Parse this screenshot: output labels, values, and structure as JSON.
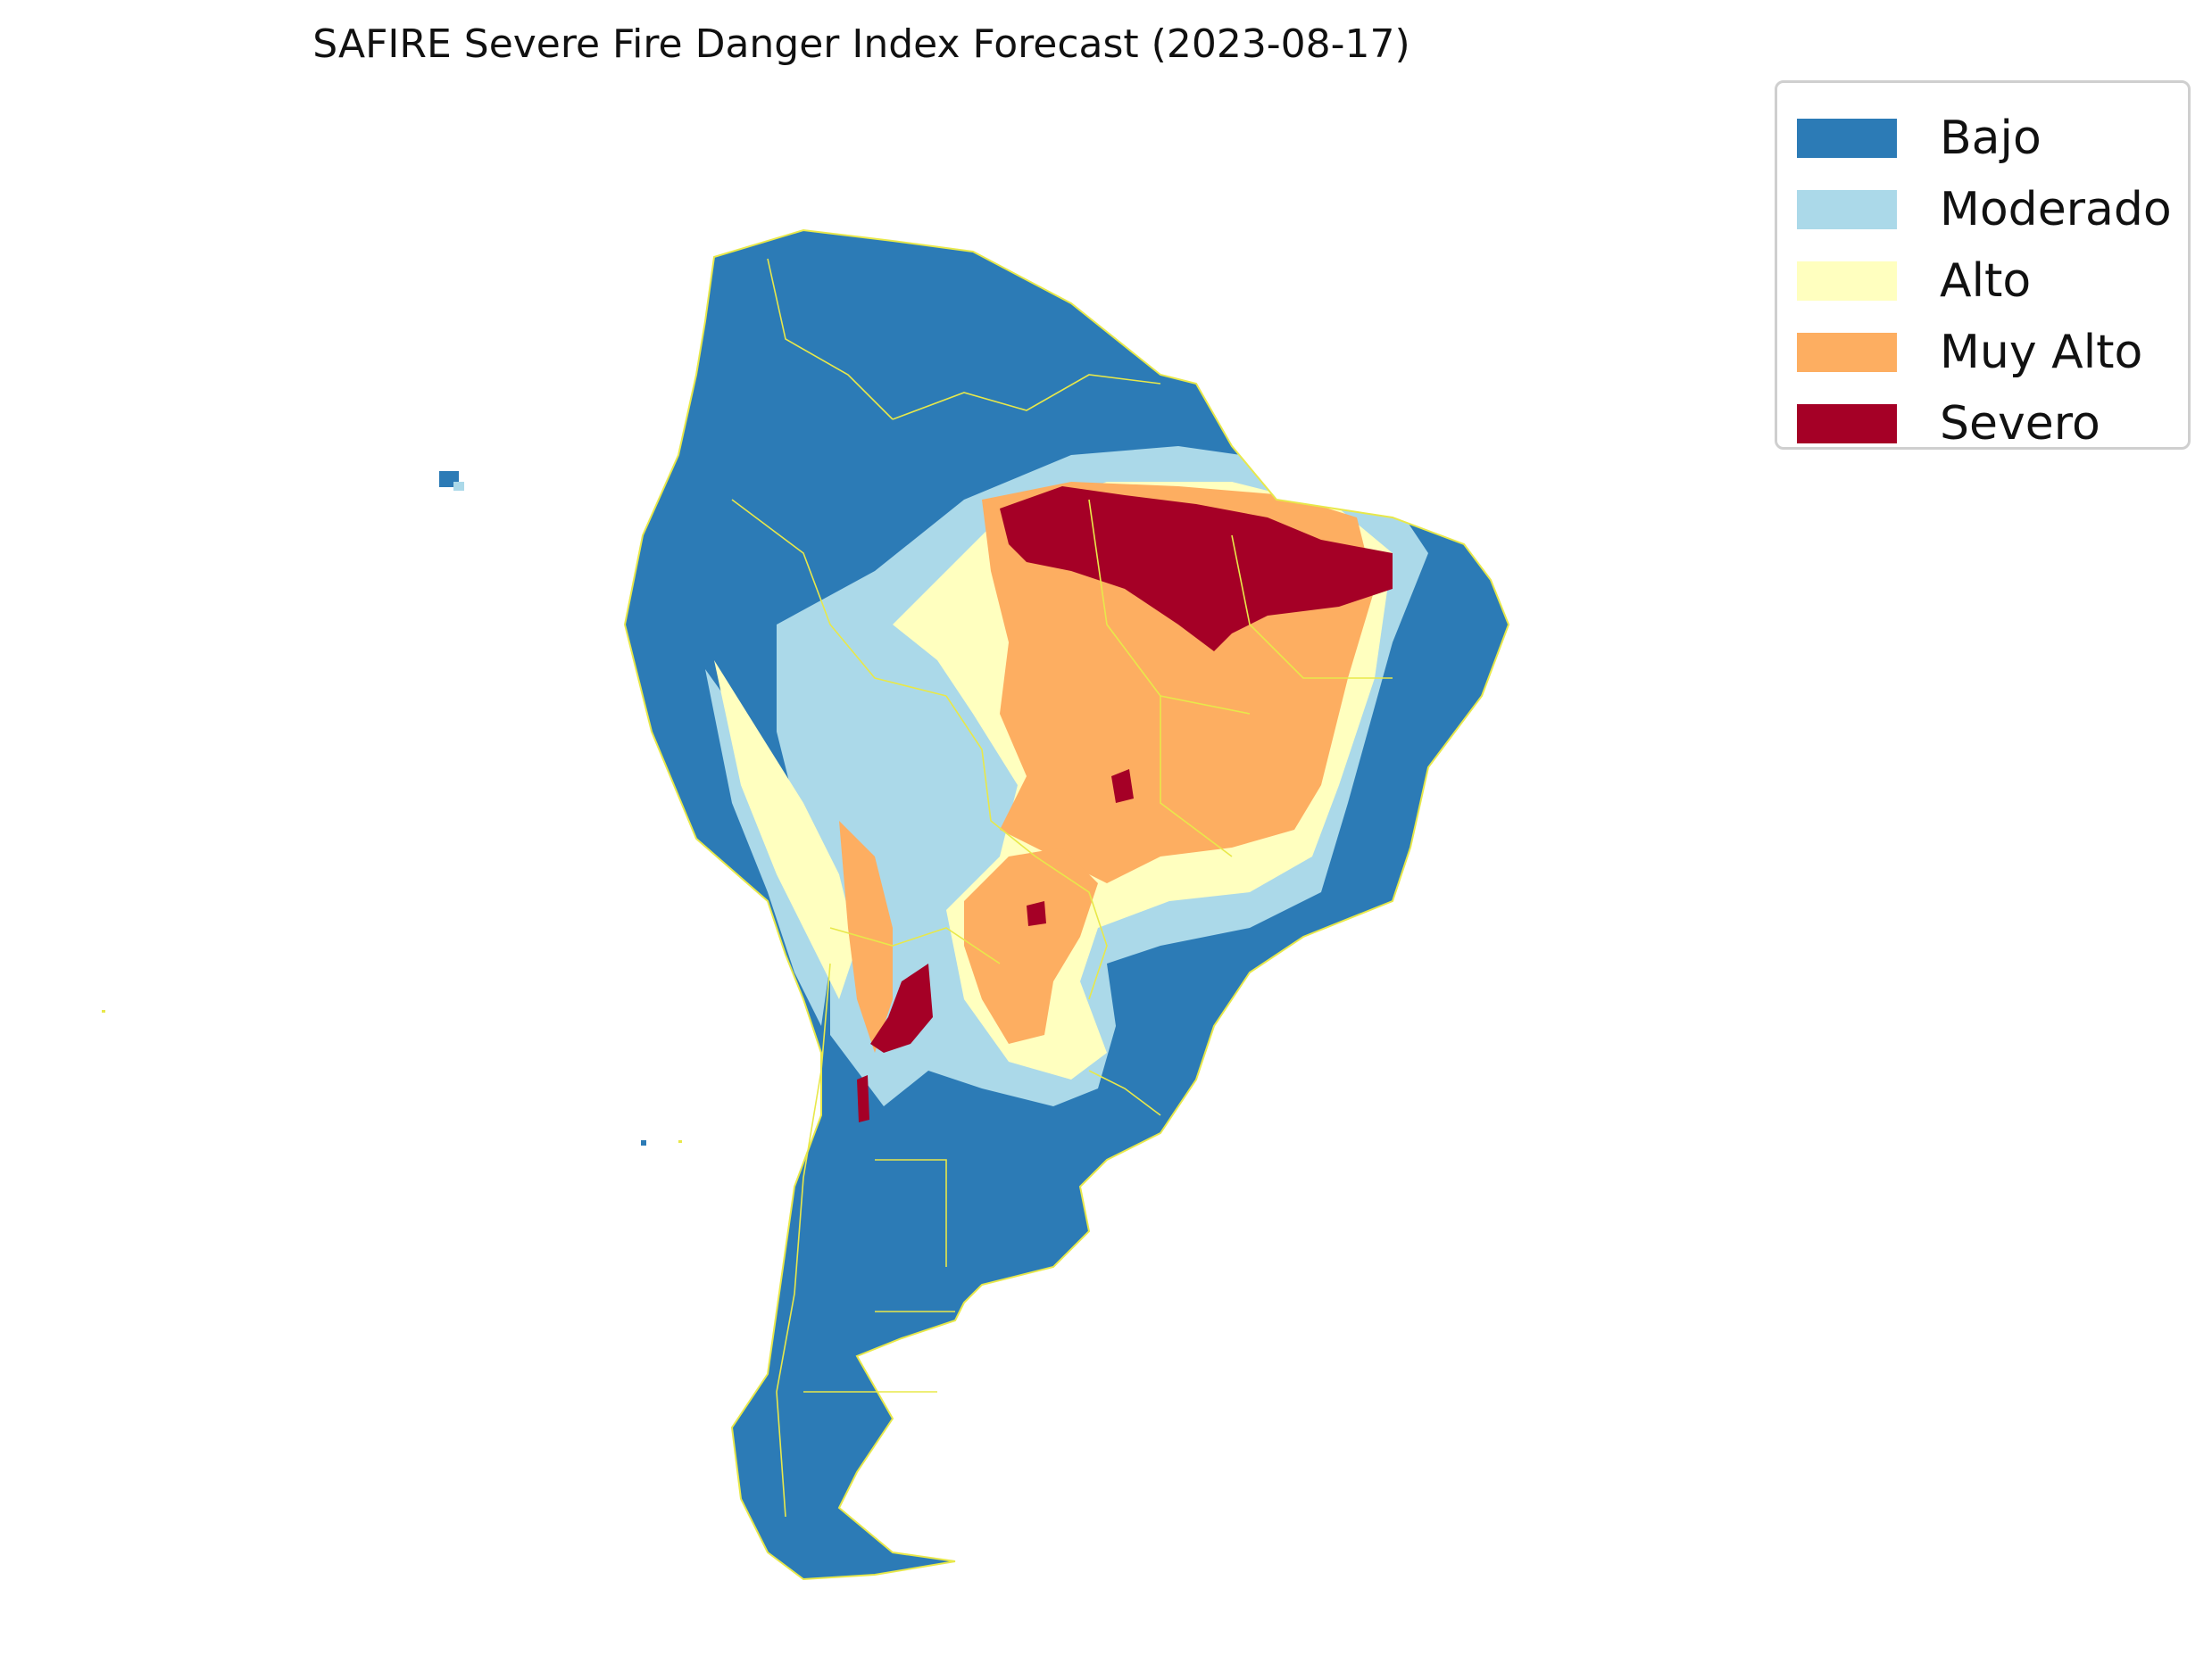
{
  "title": "SAFIRE Severe Fire Danger Index Forecast (2023-08-17)",
  "colors": {
    "bajo": "#2c7bb6",
    "moderado": "#abd9e9",
    "alto": "#ffffbf",
    "muy_alto": "#fdae61",
    "severo": "#a50026",
    "borders": "#e8e84a"
  },
  "legend": {
    "items": [
      {
        "label": "Bajo",
        "color": "#2c7bb6"
      },
      {
        "label": "Moderado",
        "color": "#abd9e9"
      },
      {
        "label": "Alto",
        "color": "#ffffbf"
      },
      {
        "label": "Muy Alto",
        "color": "#fdae61"
      },
      {
        "label": "Severo",
        "color": "#a50026"
      }
    ]
  }
}
